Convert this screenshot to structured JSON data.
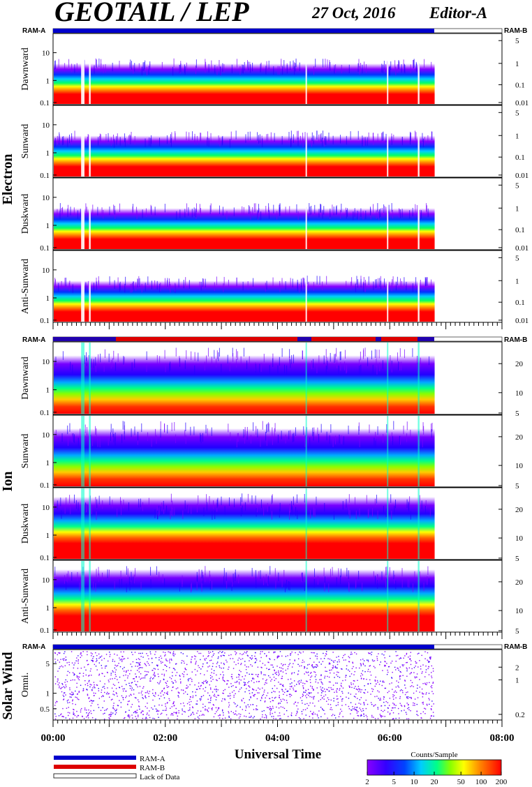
{
  "header": {
    "title": "GEOTAIL / LEP",
    "date": "27 Oct, 2016",
    "editor": "Editor-A"
  },
  "colors": {
    "ram_a": "#0000cc",
    "ram_b": "#dd0000",
    "lack": "#ffffff",
    "colorbar": [
      "#8800ff",
      "#3300ff",
      "#0044ff",
      "#00ccff",
      "#00ff88",
      "#88ff00",
      "#ffff00",
      "#ff8800",
      "#ff0000"
    ]
  },
  "panels": {
    "electron": {
      "group_label": "Electron",
      "ram_left": "RAM-A",
      "ram_right": "RAM-B",
      "left_ticks": [
        "10",
        "1",
        "0.1"
      ],
      "right_ticks": [
        "5",
        "1",
        "0.1",
        "0.01"
      ],
      "subpanels": [
        "Dawnward",
        "Sunward",
        "Duskward",
        "Anti-Sunward"
      ]
    },
    "ion": {
      "group_label": "Ion",
      "ram_left": "RAM-A",
      "ram_right": "RAM-B",
      "left_ticks": [
        "10",
        "1",
        "0.1"
      ],
      "right_ticks": [
        "20",
        "10",
        "5"
      ],
      "subpanels": [
        "Dawnward",
        "Sunward",
        "Duskward",
        "Anti-Sunward"
      ]
    },
    "solarwind": {
      "group_label": "Solar Wind",
      "ram_left": "RAM-A",
      "ram_right": "RAM-B",
      "left_ticks": [
        "5",
        "1",
        "0.5"
      ],
      "right_ticks": [
        "2",
        "1",
        "0.2"
      ],
      "subpanels": [
        "Omni."
      ]
    }
  },
  "chart_data": {
    "type": "heatmap",
    "xlabel": "Universal Time",
    "x_ticks": [
      "00:00",
      "02:00",
      "04:00",
      "06:00",
      "08:00"
    ],
    "xlim_hours": [
      0,
      8
    ],
    "data_end_hours": 6.8,
    "colorbar": {
      "label": "Counts/Sample",
      "ticks": [
        "2",
        "5",
        "10",
        "20",
        "50",
        "100",
        "200"
      ]
    },
    "legend": [
      {
        "label": "RAM-A",
        "color": "#0000cc"
      },
      {
        "label": "RAM-B",
        "color": "#dd0000"
      },
      {
        "label": "Lack of Data",
        "color": "#ffffff"
      }
    ]
  }
}
